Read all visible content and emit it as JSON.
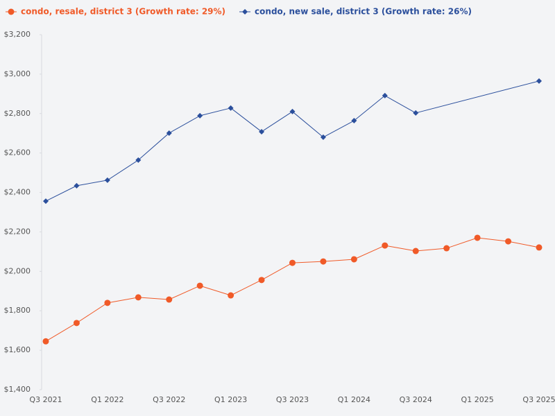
{
  "chart_data": {
    "type": "line",
    "categories": [
      "Q3 2021",
      null,
      "Q1 2022",
      null,
      "Q3 2022",
      null,
      "Q1 2023",
      null,
      "Q3 2023",
      null,
      "Q1 2024",
      null,
      "Q3 2024",
      null,
      "Q1 2025",
      null,
      "Q3 2025"
    ],
    "series": [
      {
        "name": "condo, resale, district 3 (Growth rate: 29%)",
        "color": "#f05a28",
        "marker": "circle",
        "values": [
          1645,
          1738,
          1840,
          1868,
          1857,
          1927,
          1878,
          1956,
          2043,
          2050,
          2061,
          2131,
          2103,
          2117,
          2170,
          2152,
          2121
        ]
      },
      {
        "name": "condo, new sale, district 3 (Growth rate: 26%)",
        "color": "#2b4f9c",
        "marker": "diamond",
        "values": [
          2356,
          2434,
          2462,
          2564,
          2701,
          2789,
          2828,
          2708,
          2810,
          2680,
          2764,
          2891,
          2803,
          null,
          null,
          null,
          2965
        ]
      }
    ],
    "span_gaps": true,
    "ylim": [
      1400,
      3200
    ],
    "yticks": [
      {
        "value": 1400,
        "label": "$1,400"
      },
      {
        "value": 1600,
        "label": "$1,600"
      },
      {
        "value": 1800,
        "label": "$1,800"
      },
      {
        "value": 2000,
        "label": "$2,000"
      },
      {
        "value": 2200,
        "label": "$2,200"
      },
      {
        "value": 2400,
        "label": "$2,400"
      },
      {
        "value": 2600,
        "label": "$2,600"
      },
      {
        "value": 2800,
        "label": "$2,800"
      },
      {
        "value": 3000,
        "label": "$3,000"
      },
      {
        "value": 3200,
        "label": "$3,200"
      }
    ],
    "grid": false,
    "legend": "top-left"
  }
}
